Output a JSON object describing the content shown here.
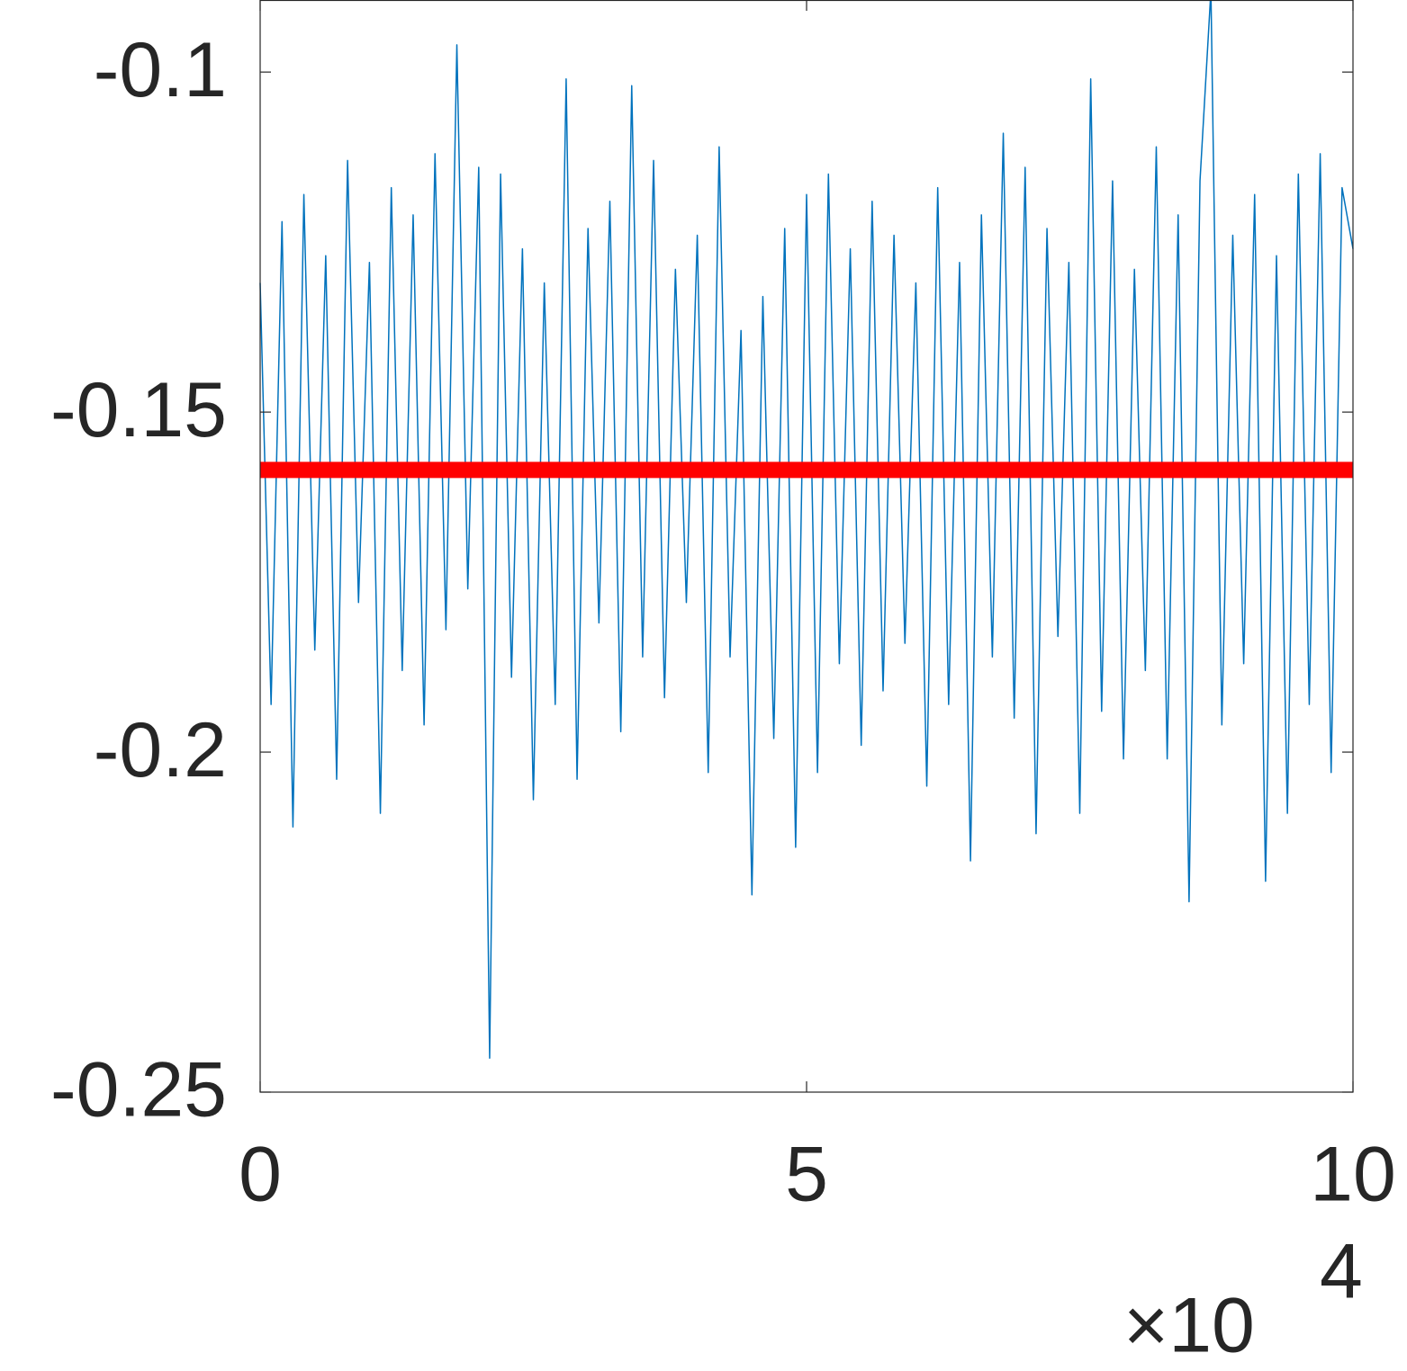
{
  "chart_data": {
    "type": "line",
    "x": [
      0,
      0.1,
      0.2,
      0.3,
      0.4,
      0.5,
      0.6,
      0.7,
      0.8,
      0.9,
      1,
      1.1,
      1.2,
      1.3,
      1.4,
      1.5,
      1.6,
      1.7,
      1.8,
      1.9,
      2,
      2.1,
      2.2,
      2.3,
      2.4,
      2.5,
      2.6,
      2.7,
      2.8,
      2.9,
      3,
      3.1,
      3.2,
      3.3,
      3.4,
      3.5,
      3.6,
      3.7,
      3.8,
      3.9,
      4,
      4.1,
      4.2,
      4.3,
      4.4,
      4.5,
      4.6,
      4.7,
      4.8,
      4.9,
      5,
      5.1,
      5.2,
      5.3,
      5.4,
      5.5,
      5.6,
      5.7,
      5.8,
      5.9,
      6,
      6.1,
      6.2,
      6.3,
      6.4,
      6.5,
      6.6,
      6.7,
      6.8,
      6.9,
      7,
      7.1,
      7.2,
      7.3,
      7.4,
      7.5,
      7.6,
      7.7,
      7.8,
      7.9,
      8,
      8.1,
      8.2,
      8.3,
      8.4,
      8.5,
      8.6,
      8.7,
      8.8,
      8.9,
      9,
      9.1,
      9.2,
      9.3,
      9.4,
      9.5,
      9.6,
      9.7,
      9.8,
      9.9,
      10
    ],
    "series": [
      {
        "color": "#0072bd",
        "width": 1.5,
        "values": [
          -0.131,
          -0.193,
          -0.122,
          -0.211,
          -0.118,
          -0.185,
          -0.127,
          -0.204,
          -0.113,
          -0.178,
          -0.128,
          -0.209,
          -0.117,
          -0.188,
          -0.121,
          -0.196,
          -0.112,
          -0.182,
          -0.096,
          -0.176,
          -0.114,
          -0.245,
          -0.115,
          -0.189,
          -0.126,
          -0.207,
          -0.131,
          -0.193,
          -0.101,
          -0.204,
          -0.123,
          -0.181,
          -0.119,
          -0.197,
          -0.102,
          -0.186,
          -0.113,
          -0.192,
          -0.129,
          -0.178,
          -0.124,
          -0.203,
          -0.111,
          -0.186,
          -0.138,
          -0.221,
          -0.133,
          -0.198,
          -0.123,
          -0.214,
          -0.118,
          -0.203,
          -0.115,
          -0.187,
          -0.126,
          -0.199,
          -0.119,
          -0.191,
          -0.124,
          -0.184,
          -0.131,
          -0.205,
          -0.117,
          -0.193,
          -0.128,
          -0.216,
          -0.121,
          -0.186,
          -0.109,
          -0.195,
          -0.114,
          -0.212,
          -0.123,
          -0.183,
          -0.128,
          -0.209,
          -0.101,
          -0.194,
          -0.116,
          -0.201,
          -0.129,
          -0.188,
          -0.111,
          -0.201,
          -0.121,
          -0.222,
          -0.116,
          -0.088,
          -0.196,
          -0.124,
          -0.187,
          -0.118,
          -0.219,
          -0.127,
          -0.209,
          -0.115,
          -0.193,
          -0.112,
          -0.203,
          -0.117,
          -0.126
        ]
      },
      {
        "color": "#ff0000",
        "width": 18,
        "x": [
          0,
          10
        ],
        "values": [
          -0.1585,
          -0.1585
        ]
      }
    ],
    "xlim": [
      0,
      10
    ],
    "xticks": [
      0,
      5,
      10
    ],
    "ylim": [
      -0.25,
      -0.0894
    ],
    "yticks": [
      -0.25,
      -0.2,
      -0.15,
      -0.1
    ],
    "x_multiplier": {
      "base": "×10",
      "exponent": "4"
    }
  }
}
